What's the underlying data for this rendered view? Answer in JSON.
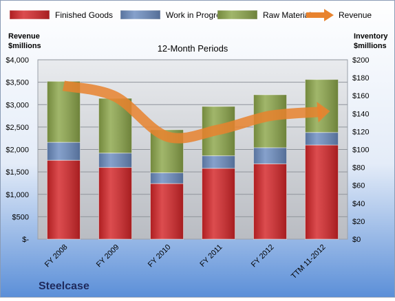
{
  "colors": {
    "background_top": "#ffffff",
    "background_bottom": "#5b8fd8",
    "plot_top": "#e9ebee",
    "plot_bottom": "#b9bcc2",
    "finished_goods": "#d42528",
    "work_in_progress": "#6b8cc0",
    "raw_materials": "#8ca64a",
    "revenue_line": "#e8832e",
    "company_text": "#1f2a5c"
  },
  "company": "Steelcase",
  "chart_data": {
    "type": "bar",
    "stacked": true,
    "title": "12-Month Periods",
    "categories": [
      "FY 2008",
      "FY 2009",
      "FY 2010",
      "FY 2011",
      "FY 2012",
      "TTM 11-2012"
    ],
    "left_axis": {
      "label_line1": "Revenue",
      "label_line2": "$millions",
      "range": [
        0,
        4000
      ],
      "tick_values": [
        0,
        500,
        1000,
        1500,
        2000,
        2500,
        3000,
        3500,
        4000
      ],
      "tick_labels": [
        "$-",
        "$500",
        "$1,000",
        "$1,500",
        "$2,000",
        "$2,500",
        "$3,000",
        "$3,500",
        "$4,000"
      ]
    },
    "right_axis": {
      "label_line1": "Inventory",
      "label_line2": "$millions",
      "range": [
        0,
        200
      ],
      "tick_values": [
        0,
        20,
        40,
        60,
        80,
        100,
        120,
        140,
        160,
        180,
        200
      ],
      "tick_labels": [
        "$0",
        "$20",
        "$40",
        "$60",
        "$80",
        "$100",
        "$120",
        "$140",
        "$160",
        "$180",
        "$200"
      ]
    },
    "series": [
      {
        "name": "Finished Goods",
        "axis": "right",
        "kind": "bar",
        "color": "#d42528",
        "values": [
          88,
          80,
          62,
          79,
          84,
          105
        ]
      },
      {
        "name": "Work in Progress",
        "axis": "right",
        "kind": "bar",
        "color": "#6b8cc0",
        "values": [
          20,
          16,
          12,
          14,
          18,
          14
        ]
      },
      {
        "name": "Raw Materials",
        "axis": "right",
        "kind": "bar",
        "color": "#8ca64a",
        "values": [
          68,
          61,
          48,
          55,
          59,
          59
        ]
      },
      {
        "name": "Revenue",
        "axis": "left",
        "kind": "line",
        "color": "#e8832e",
        "values": [
          3420,
          3180,
          2290,
          2440,
          2750,
          2840
        ]
      }
    ],
    "grid": true,
    "legend_position": "top"
  }
}
